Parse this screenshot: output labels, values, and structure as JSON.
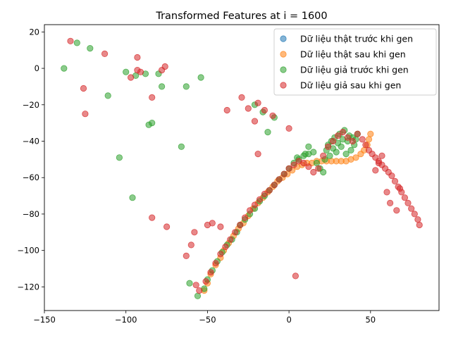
{
  "chart_data": {
    "type": "scatter",
    "title": "Transformed Features at i = 1600",
    "xlabel": "",
    "ylabel": "",
    "xlim": [
      -150,
      92
    ],
    "ylim": [
      -133,
      24
    ],
    "xticks": [
      -150,
      -100,
      -50,
      0,
      50
    ],
    "yticks": [
      20,
      0,
      -20,
      -40,
      -60,
      -80,
      -100,
      -120
    ],
    "grid": false,
    "legend_position": "top-right",
    "series": [
      {
        "name": "Dữ liệu thật trước khi gen",
        "color": "#1f77b4",
        "x": [],
        "y": []
      },
      {
        "name": "Dữ liệu thật sau khi gen",
        "color": "#ff7f0e",
        "x": [
          -52,
          -50,
          -48,
          -45,
          -42,
          -40,
          -37,
          -34,
          -31,
          -28,
          -25,
          -22,
          -19,
          -16,
          -13,
          -10,
          -7,
          -4,
          -1,
          2,
          5,
          8,
          11,
          14,
          17,
          20,
          23,
          26,
          29,
          32,
          35,
          38,
          41,
          44,
          46,
          48,
          49,
          50
        ],
        "y": [
          -122,
          -118,
          -113,
          -108,
          -104,
          -100,
          -96,
          -92,
          -88,
          -85,
          -81,
          -77,
          -74,
          -71,
          -68,
          -65,
          -62,
          -60,
          -58,
          -56,
          -54,
          -53,
          -52,
          -52,
          -51,
          -51,
          -51,
          -51,
          -51,
          -51,
          -51,
          -50,
          -49,
          -47,
          -45,
          -42,
          -39,
          -36
        ]
      },
      {
        "name": "Dữ liệu giả trước khi gen",
        "color": "#2ca02c",
        "x": [
          -138,
          -130,
          -122,
          -111,
          -104,
          -100,
          -96,
          -94,
          -88,
          -86,
          -84,
          -80,
          -78,
          -66,
          -63,
          -54,
          -61,
          -56,
          -52,
          -50,
          -47,
          -44,
          -41,
          -38,
          -35,
          -32,
          -30,
          -27,
          -24,
          -21,
          -18,
          -15,
          -12,
          -9,
          -6,
          -3,
          0,
          3,
          6,
          9,
          12,
          15,
          17,
          19,
          21,
          22,
          23,
          24,
          25,
          26,
          27,
          28,
          29,
          30,
          31,
          32,
          33,
          34,
          35,
          36,
          37,
          38,
          39,
          40,
          41,
          42,
          -21,
          -16,
          -13,
          -9,
          5,
          12,
          10
        ],
        "y": [
          0,
          14,
          11,
          -15,
          -49,
          -2,
          -71,
          -4,
          -3,
          -31,
          -30,
          -3,
          -10,
          -43,
          -10,
          -5,
          -118,
          -125,
          -121,
          -116,
          -111,
          -106,
          -101,
          -97,
          -94,
          -90,
          -86,
          -83,
          -80,
          -77,
          -73,
          -70,
          -67,
          -64,
          -61,
          -58,
          -55,
          -52,
          -50,
          -48,
          -47,
          -46,
          -52,
          -55,
          -57,
          -50,
          -45,
          -42,
          -48,
          -40,
          -44,
          -38,
          -46,
          -41,
          -36,
          -43,
          -39,
          -34,
          -47,
          -40,
          -37,
          -45,
          -38,
          -42,
          -39,
          -36,
          -20,
          -24,
          -35,
          -27,
          -49,
          -43,
          -47
        ],
        "size": 6
      },
      {
        "name": "Dữ liệu giả sau khi gen",
        "color": "#d62728",
        "x": [
          -134,
          -126,
          -125,
          -113,
          -97,
          -93,
          -93,
          -91,
          -84,
          -84,
          -78,
          -76,
          -75,
          -63,
          -60,
          -58,
          -57,
          -50,
          -47,
          -42,
          -38,
          -29,
          -25,
          -21,
          -19,
          -19,
          -15,
          -10,
          0,
          4,
          -55,
          -51,
          -48,
          -45,
          -42,
          -39,
          -36,
          -33,
          -30,
          -27,
          -24,
          -21,
          -18,
          -15,
          -12,
          -9,
          -6,
          -3,
          0,
          3,
          6,
          9,
          12,
          15,
          18,
          21,
          24,
          27,
          30,
          33,
          36,
          39,
          42,
          45,
          47,
          49,
          51,
          53,
          55,
          57,
          59,
          61,
          63,
          65,
          67,
          69,
          71,
          73,
          75,
          77,
          79,
          80,
          57,
          55,
          53,
          60,
          62,
          66,
          68
        ],
        "y": [
          15,
          -11,
          -25,
          8,
          -5,
          6,
          -1,
          -2,
          -82,
          -16,
          -1,
          1,
          -87,
          -103,
          -97,
          -90,
          -119,
          -86,
          -85,
          -87,
          -23,
          -16,
          -22,
          -29,
          -47,
          -19,
          -23,
          -26,
          -33,
          -114,
          -122,
          -117,
          -112,
          -107,
          -102,
          -98,
          -94,
          -90,
          -86,
          -82,
          -78,
          -75,
          -72,
          -69,
          -67,
          -64,
          -61,
          -58,
          -55,
          -53,
          -51,
          -52,
          -54,
          -57,
          -55,
          -48,
          -43,
          -40,
          -37,
          -35,
          -38,
          -40,
          -36,
          -39,
          -42,
          -45,
          -47,
          -49,
          -51,
          -53,
          -55,
          -57,
          -59,
          -62,
          -65,
          -68,
          -71,
          -74,
          -77,
          -80,
          -83,
          -86,
          -48,
          -52,
          -56,
          -68,
          -74,
          -78,
          -66
        ],
        "size": 6
      }
    ]
  }
}
